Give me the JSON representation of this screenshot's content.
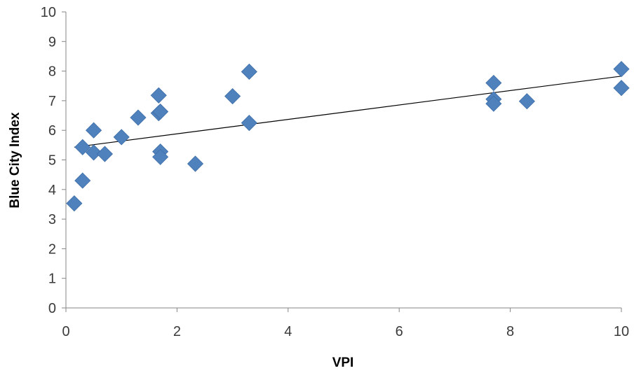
{
  "chart_data": {
    "type": "scatter",
    "title": "",
    "xlabel": "VPI",
    "ylabel": "Blue City Index",
    "xlim": [
      0,
      10
    ],
    "ylim": [
      0,
      10
    ],
    "x_ticks": [
      0,
      2,
      4,
      6,
      8,
      10
    ],
    "y_ticks": [
      0,
      1,
      2,
      3,
      4,
      5,
      6,
      7,
      8,
      9,
      10
    ],
    "x_tick_labels": [
      "0",
      "2",
      "4",
      "6",
      "8",
      "10"
    ],
    "y_tick_labels": [
      "0",
      "1",
      "2",
      "3",
      "4",
      "5",
      "6",
      "7",
      "8",
      "9",
      "10"
    ],
    "grid": false,
    "legend": "none",
    "marker": "diamond",
    "marker_color": "#4F81BD",
    "trendline_color": "#000000",
    "series": [
      {
        "points": [
          {
            "x": 0.15,
            "y": 3.53
          },
          {
            "x": 0.3,
            "y": 4.3
          },
          {
            "x": 0.3,
            "y": 5.43
          },
          {
            "x": 0.5,
            "y": 5.25
          },
          {
            "x": 0.5,
            "y": 6.0
          },
          {
            "x": 0.7,
            "y": 5.2
          },
          {
            "x": 1.0,
            "y": 5.77
          },
          {
            "x": 1.3,
            "y": 6.43
          },
          {
            "x": 1.67,
            "y": 7.18
          },
          {
            "x": 1.67,
            "y": 6.58
          },
          {
            "x": 1.7,
            "y": 6.63
          },
          {
            "x": 1.7,
            "y": 5.28
          },
          {
            "x": 1.7,
            "y": 5.1
          },
          {
            "x": 2.33,
            "y": 4.87
          },
          {
            "x": 3.0,
            "y": 7.15
          },
          {
            "x": 3.3,
            "y": 7.98
          },
          {
            "x": 3.3,
            "y": 6.25
          },
          {
            "x": 7.7,
            "y": 7.6
          },
          {
            "x": 7.7,
            "y": 7.05
          },
          {
            "x": 7.7,
            "y": 6.9
          },
          {
            "x": 8.3,
            "y": 6.98
          },
          {
            "x": 10.0,
            "y": 8.07
          },
          {
            "x": 10.0,
            "y": 7.43
          }
        ]
      }
    ],
    "trendline": {
      "x": [
        0.15,
        10.0
      ],
      "y": [
        5.43,
        7.83
      ]
    }
  }
}
